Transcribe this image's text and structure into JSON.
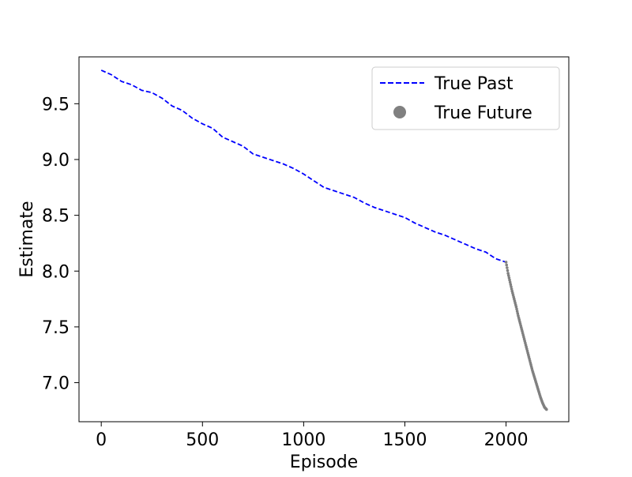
{
  "chart_data": {
    "type": "line",
    "title": "",
    "xlabel": "Episode",
    "ylabel": "Estimate",
    "xlim": [
      -110,
      2310
    ],
    "ylim": [
      6.65,
      9.92
    ],
    "xticks": [
      0,
      500,
      1000,
      1500,
      2000
    ],
    "xtick_labels": [
      "0",
      "500",
      "1000",
      "1500",
      "2000"
    ],
    "yticks": [
      7.0,
      7.5,
      8.0,
      8.5,
      9.0,
      9.5
    ],
    "ytick_labels": [
      "7.0",
      "7.5",
      "8.0",
      "8.5",
      "9.0",
      "9.5"
    ],
    "grid": false,
    "legend_position": "upper right",
    "series": [
      {
        "name": "True Past",
        "style": "dashed-line",
        "color": "#0000ff",
        "x": [
          0,
          50,
          100,
          150,
          200,
          250,
          300,
          350,
          400,
          450,
          500,
          550,
          600,
          650,
          700,
          750,
          800,
          850,
          900,
          950,
          1000,
          1050,
          1100,
          1150,
          1200,
          1250,
          1300,
          1350,
          1400,
          1450,
          1500,
          1550,
          1600,
          1650,
          1700,
          1750,
          1800,
          1850,
          1900,
          1950,
          2000
        ],
        "y": [
          9.8,
          9.76,
          9.7,
          9.67,
          9.62,
          9.6,
          9.55,
          9.48,
          9.44,
          9.37,
          9.32,
          9.28,
          9.2,
          9.16,
          9.12,
          9.05,
          9.02,
          8.99,
          8.96,
          8.92,
          8.87,
          8.81,
          8.75,
          8.72,
          8.69,
          8.66,
          8.61,
          8.57,
          8.54,
          8.51,
          8.48,
          8.43,
          8.39,
          8.35,
          8.32,
          8.28,
          8.24,
          8.2,
          8.17,
          8.11,
          8.08
        ]
      },
      {
        "name": "True Future",
        "style": "markers",
        "color": "#808080",
        "x": [
          2000,
          2010,
          2020,
          2030,
          2040,
          2050,
          2060,
          2070,
          2080,
          2090,
          2100,
          2110,
          2120,
          2130,
          2140,
          2150,
          2160,
          2170,
          2180,
          2190,
          2200
        ],
        "y": [
          8.08,
          7.98,
          7.9,
          7.82,
          7.75,
          7.68,
          7.6,
          7.53,
          7.46,
          7.39,
          7.32,
          7.25,
          7.18,
          7.11,
          7.05,
          6.99,
          6.93,
          6.87,
          6.82,
          6.78,
          6.76
        ]
      }
    ]
  }
}
